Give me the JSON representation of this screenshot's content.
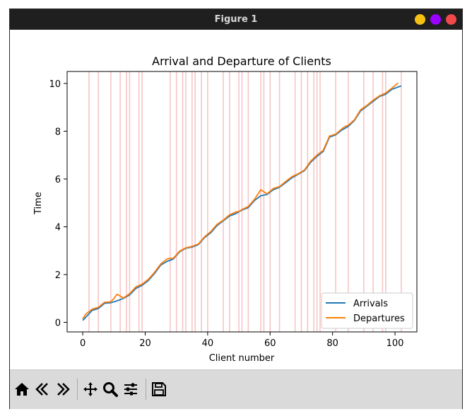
{
  "window": {
    "title": "Figure 1",
    "buttons": [
      {
        "name": "minimize",
        "color": "#f5c211"
      },
      {
        "name": "maximize",
        "color": "#9c00ff"
      },
      {
        "name": "close",
        "color": "#f0494b"
      }
    ]
  },
  "toolbar": {
    "items": [
      {
        "icon": "home-icon",
        "action": "Home"
      },
      {
        "icon": "back-icon",
        "action": "Back"
      },
      {
        "icon": "forward-icon",
        "action": "Forward"
      },
      {
        "icon": "pan-icon",
        "action": "Pan"
      },
      {
        "icon": "zoom-icon",
        "action": "Zoom"
      },
      {
        "icon": "configure-subplots-icon",
        "action": "Configure subplots"
      },
      {
        "icon": "save-icon",
        "action": "Save"
      }
    ]
  },
  "chart_data": {
    "type": "line",
    "title": "Arrival and Departure of Clients",
    "xlabel": "Client number",
    "ylabel": "Time",
    "xlim": [
      -5,
      107
    ],
    "ylim": [
      -0.4,
      10.5
    ],
    "xticks": [
      0,
      20,
      40,
      60,
      80,
      100
    ],
    "yticks": [
      0,
      2,
      4,
      6,
      8,
      10
    ],
    "grid": false,
    "legend": "lower-right",
    "series": [
      {
        "name": "Arrivals",
        "color": "#1f77b4",
        "x": [
          0,
          1,
          3,
          5,
          7,
          9,
          11,
          13,
          15,
          17,
          19,
          21,
          23,
          25,
          27,
          29,
          31,
          33,
          35,
          37,
          39,
          41,
          43,
          45,
          47,
          49,
          51,
          53,
          55,
          57,
          59,
          61,
          63,
          65,
          67,
          69,
          71,
          73,
          75,
          77,
          79,
          81,
          83,
          85,
          87,
          89,
          91,
          93,
          95,
          97,
          99,
          101,
          102
        ],
        "y": [
          0.08,
          0.22,
          0.5,
          0.58,
          0.8,
          0.82,
          0.9,
          1.0,
          1.15,
          1.42,
          1.55,
          1.75,
          2.05,
          2.4,
          2.55,
          2.65,
          2.95,
          3.1,
          3.15,
          3.25,
          3.55,
          3.75,
          4.05,
          4.25,
          4.45,
          4.55,
          4.7,
          4.8,
          5.1,
          5.3,
          5.35,
          5.55,
          5.65,
          5.85,
          6.05,
          6.2,
          6.35,
          6.7,
          6.95,
          7.15,
          7.75,
          7.85,
          8.05,
          8.2,
          8.45,
          8.85,
          9.05,
          9.25,
          9.45,
          9.55,
          9.75,
          9.85,
          9.9
        ]
      },
      {
        "name": "Departures",
        "color": "#ff7f0e",
        "x": [
          0,
          1,
          3,
          5,
          7,
          9,
          10,
          11,
          13,
          15,
          17,
          19,
          21,
          23,
          25,
          27,
          28,
          29,
          31,
          33,
          35,
          37,
          39,
          41,
          43,
          45,
          47,
          49,
          50,
          51,
          53,
          55,
          57,
          59,
          61,
          63,
          65,
          67,
          69,
          71,
          73,
          75,
          77,
          79,
          81,
          83,
          84,
          85,
          87,
          89,
          91,
          93,
          95,
          97,
          99,
          101
        ],
        "y": [
          0.15,
          0.35,
          0.55,
          0.63,
          0.84,
          0.86,
          1.0,
          1.18,
          1.02,
          1.2,
          1.48,
          1.6,
          1.8,
          2.1,
          2.45,
          2.65,
          2.68,
          2.68,
          2.98,
          3.12,
          3.18,
          3.28,
          3.58,
          3.8,
          4.1,
          4.28,
          4.5,
          4.62,
          4.64,
          4.72,
          4.85,
          5.15,
          5.55,
          5.38,
          5.6,
          5.68,
          5.9,
          6.1,
          6.22,
          6.38,
          6.75,
          7.0,
          7.2,
          7.8,
          7.88,
          8.1,
          8.2,
          8.25,
          8.48,
          8.9,
          9.08,
          9.3,
          9.48,
          9.6,
          9.8,
          10.02
        ]
      }
    ],
    "vlines": {
      "color": "#f7c5c5",
      "x": [
        2,
        5,
        9,
        12,
        14,
        15,
        18,
        19,
        28,
        30,
        32,
        33,
        35,
        36,
        38,
        40,
        45,
        47,
        50,
        51,
        53,
        57,
        58,
        60,
        63,
        68,
        70,
        72,
        74,
        75,
        76,
        81,
        85,
        90,
        93,
        96,
        97,
        102
      ]
    }
  }
}
